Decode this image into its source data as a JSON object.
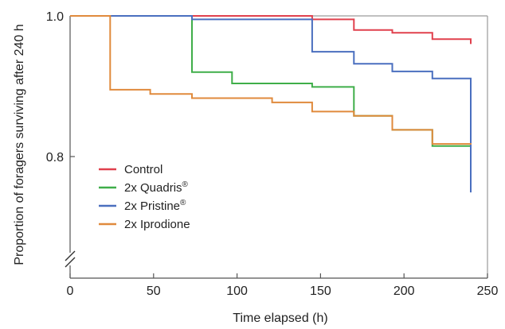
{
  "chart_data": {
    "type": "line",
    "step": true,
    "xlabel": "Time elapsed (h)",
    "ylabel": "Proportion of foragers surviving after 240 h",
    "xlim": [
      0,
      250
    ],
    "ylim": [
      0.7,
      1.0
    ],
    "x_ticks": [
      "0",
      "50",
      "100",
      "150",
      "200",
      "250"
    ],
    "y_ticks": [
      "1.0",
      "0.8"
    ],
    "y_tick_values": [
      1.0,
      0.8
    ],
    "x_tick_values": [
      0,
      50,
      100,
      150,
      200,
      250
    ],
    "y_axis_break": true,
    "grid": false,
    "legend_position": "bottom-left",
    "series": [
      {
        "name": "Control",
        "label_main": "Control",
        "label_sup": "",
        "color": "#e0404d",
        "points": [
          [
            0,
            1.0
          ],
          [
            145,
            1.0
          ],
          [
            145,
            0.995
          ],
          [
            170,
            0.995
          ],
          [
            170,
            0.98
          ],
          [
            193,
            0.98
          ],
          [
            193,
            0.976
          ],
          [
            217,
            0.976
          ],
          [
            217,
            0.967
          ],
          [
            240,
            0.967
          ],
          [
            240,
            0.96
          ]
        ]
      },
      {
        "name": "2x Quadris®",
        "label_main": "2x Quadris",
        "label_sup": "®",
        "color": "#3fae49",
        "points": [
          [
            0,
            1.0
          ],
          [
            73,
            1.0
          ],
          [
            73,
            0.92
          ],
          [
            97,
            0.92
          ],
          [
            97,
            0.904
          ],
          [
            145,
            0.904
          ],
          [
            145,
            0.899
          ],
          [
            170,
            0.899
          ],
          [
            170,
            0.858
          ],
          [
            193,
            0.858
          ],
          [
            193,
            0.838
          ],
          [
            217,
            0.838
          ],
          [
            217,
            0.815
          ],
          [
            240,
            0.815
          ],
          [
            240,
            0.813
          ]
        ]
      },
      {
        "name": "2x Pristine®",
        "label_main": "2x Pristine",
        "label_sup": "®",
        "color": "#4a6fbf",
        "points": [
          [
            0,
            1.0
          ],
          [
            73,
            1.0
          ],
          [
            73,
            0.995
          ],
          [
            145,
            0.995
          ],
          [
            145,
            0.949
          ],
          [
            170,
            0.949
          ],
          [
            170,
            0.932
          ],
          [
            193,
            0.932
          ],
          [
            193,
            0.921
          ],
          [
            217,
            0.921
          ],
          [
            217,
            0.911
          ],
          [
            240,
            0.911
          ],
          [
            240,
            0.749
          ]
        ]
      },
      {
        "name": "2x Iprodione",
        "label_main": "2x Iprodione",
        "label_sup": "",
        "color": "#e08a3c",
        "points": [
          [
            0,
            1.0
          ],
          [
            24,
            1.0
          ],
          [
            24,
            0.895
          ],
          [
            48,
            0.895
          ],
          [
            48,
            0.889
          ],
          [
            73,
            0.889
          ],
          [
            73,
            0.883
          ],
          [
            121,
            0.883
          ],
          [
            121,
            0.877
          ],
          [
            145,
            0.877
          ],
          [
            145,
            0.864
          ],
          [
            170,
            0.864
          ],
          [
            170,
            0.858
          ],
          [
            193,
            0.858
          ],
          [
            193,
            0.838
          ],
          [
            217,
            0.838
          ],
          [
            217,
            0.818
          ],
          [
            240,
            0.818
          ],
          [
            240,
            0.817
          ]
        ]
      }
    ]
  }
}
